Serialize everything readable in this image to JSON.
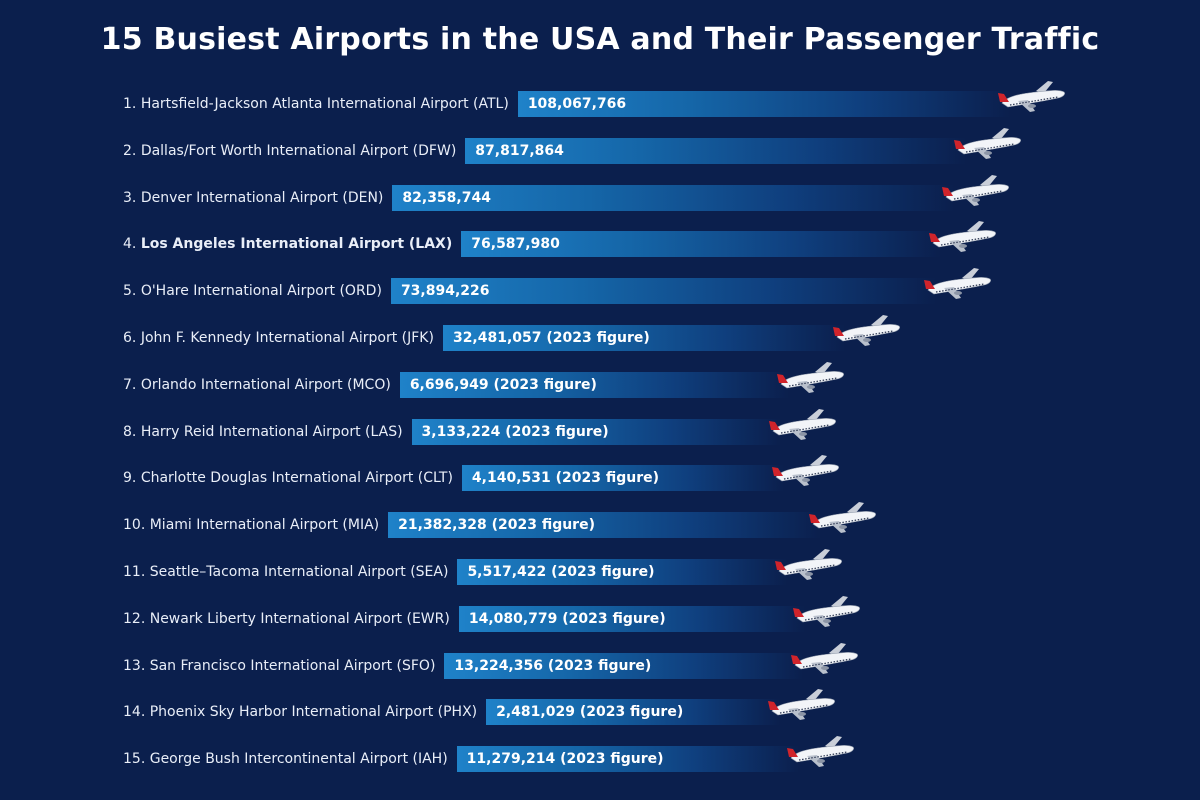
{
  "chart_data": {
    "type": "bar",
    "orientation": "horizontal",
    "title": "15 Busiest Airports in the USA and Their Passenger Traffic",
    "xlabel": "",
    "ylabel": "",
    "grid": false,
    "categories": [
      "Hartsfield-Jackson Atlanta International Airport (ATL)",
      "Dallas/Fort Worth International Airport (DFW)",
      "Denver International Airport (DEN)",
      "Los Angeles International Airport (LAX)",
      "O'Hare International Airport (ORD)",
      "John F. Kennedy International Airport (JFK)",
      "Orlando International Airport (MCO)",
      "Harry Reid International Airport (LAS)",
      "Charlotte Douglas International Airport (CLT)",
      "Miami International Airport (MIA)",
      "Seattle–Tacoma International Airport (SEA)",
      "Newark Liberty International Airport (EWR)",
      "San Francisco International Airport (SFO)",
      "Phoenix Sky Harbor International Airport (PHX)",
      "George Bush Intercontinental Airport (IAH)"
    ],
    "ranks": [
      "1.",
      "2.",
      "3.",
      "4.",
      "5.",
      "6.",
      "7.",
      "8.",
      "9.",
      "10.",
      "11.",
      "12.",
      "13.",
      "14.",
      "15."
    ],
    "values": [
      108067766,
      87817864,
      82358744,
      76587980,
      73894226,
      32481057,
      6696949,
      3133224,
      4140531,
      21382328,
      5517422,
      14080779,
      13224356,
      2481029,
      11279214
    ],
    "value_labels": [
      "108,067,766",
      "87,817,864",
      "82,358,744",
      "76,587,980",
      "73,894,226",
      "32,481,057 (2023 figure)",
      "6,696,949 (2023 figure)",
      "3,133,224 (2023 figure)",
      "4,140,531 (2023 figure)",
      "21,382,328 (2023 figure)",
      "5,517,422 (2023 figure)",
      "14,080,779 (2023 figure)",
      "13,224,356 (2023 figure)",
      "2,481,029 (2023 figure)",
      "11,279,214 (2023 figure)"
    ],
    "bold_categories": [
      "Los Angeles International Airport (LAX)"
    ],
    "colors": {
      "background": "#0b1f4d",
      "bar": "#1f82c9",
      "text": "#ffffff"
    },
    "bar_end_icon": "airplane-icon"
  }
}
